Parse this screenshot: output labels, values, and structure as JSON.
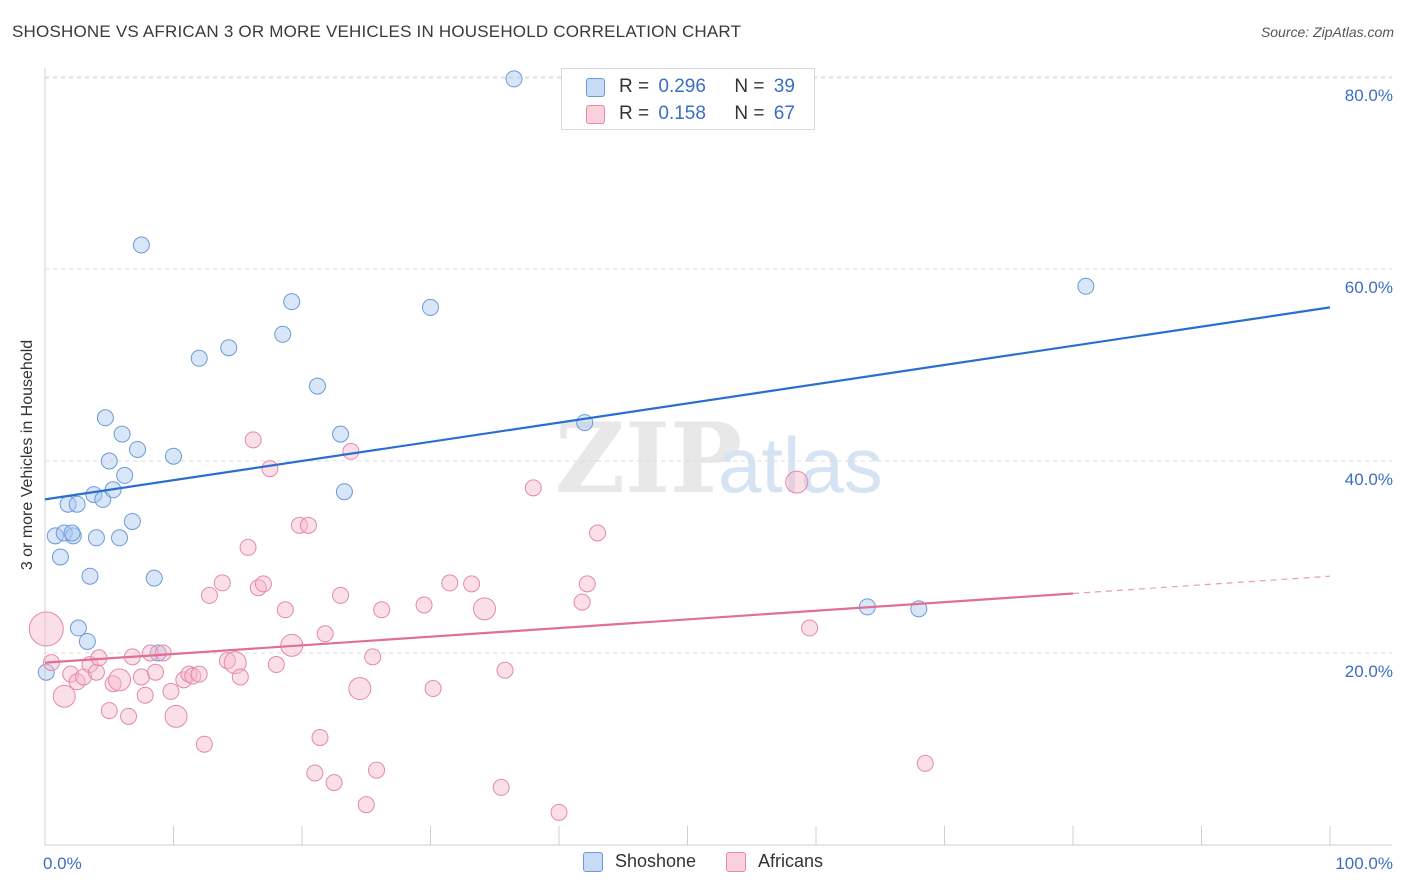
{
  "title": "SHOSHONE VS AFRICAN 3 OR MORE VEHICLES IN HOUSEHOLD CORRELATION CHART",
  "source": "Source: ZipAtlas.com",
  "watermark": {
    "zip": "ZIP",
    "atlas": "atlas"
  },
  "legend_top": {
    "rows": [
      {
        "r_label": "R =",
        "r_value": "0.296",
        "n_label": "N =",
        "n_value": "39",
        "color": "#a9c8f0"
      },
      {
        "r_label": "R =",
        "r_value": "0.158",
        "n_label": "N =",
        "n_value": "67",
        "color": "#f6b8cb"
      }
    ]
  },
  "chart_data": {
    "type": "scatter",
    "title": "SHOSHONE VS AFRICAN 3 OR MORE VEHICLES IN HOUSEHOLD CORRELATION CHART",
    "xlabel": "",
    "ylabel": "3 or more Vehicles in Household",
    "xlim": [
      0,
      100
    ],
    "ylim": [
      0,
      83
    ],
    "x_tick_labels": [
      {
        "value": 0,
        "label": "0.0%"
      },
      {
        "value": 100,
        "label": "100.0%"
      }
    ],
    "y_tick_labels": [
      {
        "value": 20,
        "label": "20.0%"
      },
      {
        "value": 40,
        "label": "40.0%"
      },
      {
        "value": 60,
        "label": "60.0%"
      },
      {
        "value": 80,
        "label": "80.0%"
      }
    ],
    "series": [
      {
        "name": "Shoshone",
        "color": "#a9c8f0",
        "edge_color": "#6c9ad8",
        "line_color": "#2a6fcf",
        "trend": {
          "x": [
            0,
            100
          ],
          "y": [
            36.0,
            56.0
          ]
        },
        "points": [
          [
            0.1,
            18.0
          ],
          [
            0.8,
            32.2
          ],
          [
            1.2,
            30.0
          ],
          [
            1.5,
            32.5
          ],
          [
            1.8,
            35.5
          ],
          [
            2.2,
            32.2
          ],
          [
            2.5,
            35.5
          ],
          [
            3.5,
            28.0
          ],
          [
            3.8,
            36.5
          ],
          [
            4.0,
            32.0
          ],
          [
            4.5,
            36.0
          ],
          [
            4.7,
            44.5
          ],
          [
            5.0,
            40.0
          ],
          [
            5.3,
            37.0
          ],
          [
            5.8,
            32.0
          ],
          [
            6.0,
            42.8
          ],
          [
            6.2,
            38.5
          ],
          [
            6.8,
            33.7
          ],
          [
            7.2,
            41.2
          ],
          [
            7.5,
            62.5
          ],
          [
            8.5,
            27.8
          ],
          [
            8.8,
            20.0
          ],
          [
            10.0,
            40.5
          ],
          [
            12.0,
            50.7
          ],
          [
            14.3,
            51.8
          ],
          [
            18.5,
            53.2
          ],
          [
            19.2,
            56.6
          ],
          [
            21.2,
            47.8
          ],
          [
            23.0,
            42.8
          ],
          [
            23.3,
            36.8
          ],
          [
            30.0,
            56.0
          ],
          [
            36.5,
            79.8
          ],
          [
            42.0,
            44.0
          ],
          [
            64.0,
            24.8
          ],
          [
            68.0,
            24.6
          ],
          [
            81.0,
            58.2
          ],
          [
            2.6,
            22.6
          ],
          [
            3.3,
            21.2
          ],
          [
            2.1,
            32.5
          ]
        ]
      },
      {
        "name": "Africans",
        "color": "#f6b8cb",
        "edge_color": "#e48aa6",
        "line_color": "#e06f96",
        "trend": {
          "x": [
            0,
            80
          ],
          "y": [
            19.0,
            26.2
          ]
        },
        "trend_dashed": {
          "x": [
            80,
            100
          ],
          "y": [
            26.2,
            28.0
          ]
        },
        "points": [
          [
            0.1,
            22.5
          ],
          [
            0.5,
            19.0
          ],
          [
            1.5,
            15.5
          ],
          [
            2.0,
            17.8
          ],
          [
            2.5,
            17.0
          ],
          [
            3.0,
            17.5
          ],
          [
            3.5,
            18.8
          ],
          [
            4.0,
            18.0
          ],
          [
            4.2,
            19.5
          ],
          [
            5.0,
            14.0
          ],
          [
            5.3,
            16.8
          ],
          [
            5.8,
            17.2
          ],
          [
            6.5,
            13.4
          ],
          [
            6.8,
            19.6
          ],
          [
            7.5,
            17.5
          ],
          [
            7.8,
            15.6
          ],
          [
            8.2,
            20.0
          ],
          [
            8.6,
            18.0
          ],
          [
            9.2,
            20.0
          ],
          [
            9.8,
            16.0
          ],
          [
            10.2,
            13.4
          ],
          [
            10.8,
            17.2
          ],
          [
            11.2,
            17.8
          ],
          [
            11.5,
            17.6
          ],
          [
            12.0,
            17.8
          ],
          [
            12.4,
            10.5
          ],
          [
            12.8,
            26.0
          ],
          [
            13.8,
            27.3
          ],
          [
            14.2,
            19.2
          ],
          [
            14.8,
            19.0
          ],
          [
            15.2,
            17.5
          ],
          [
            15.8,
            31.0
          ],
          [
            16.2,
            42.2
          ],
          [
            16.6,
            26.8
          ],
          [
            17.0,
            27.2
          ],
          [
            17.5,
            39.2
          ],
          [
            18.0,
            18.8
          ],
          [
            18.7,
            24.5
          ],
          [
            19.2,
            20.8
          ],
          [
            19.8,
            33.3
          ],
          [
            20.5,
            33.3
          ],
          [
            21.0,
            7.5
          ],
          [
            21.4,
            11.2
          ],
          [
            21.8,
            22.0
          ],
          [
            22.5,
            6.5
          ],
          [
            23.0,
            26.0
          ],
          [
            23.8,
            41.0
          ],
          [
            24.5,
            16.3
          ],
          [
            25.0,
            4.2
          ],
          [
            25.5,
            19.6
          ],
          [
            25.8,
            7.8
          ],
          [
            26.2,
            24.5
          ],
          [
            29.5,
            25.0
          ],
          [
            30.2,
            16.3
          ],
          [
            31.5,
            27.3
          ],
          [
            33.2,
            27.2
          ],
          [
            34.2,
            24.6
          ],
          [
            35.5,
            6.0
          ],
          [
            35.8,
            18.2
          ],
          [
            38.0,
            37.2
          ],
          [
            40.0,
            3.4
          ],
          [
            41.8,
            25.3
          ],
          [
            42.2,
            27.2
          ],
          [
            43.0,
            32.5
          ],
          [
            59.5,
            22.6
          ],
          [
            58.5,
            37.8
          ],
          [
            68.5,
            8.5
          ]
        ]
      }
    ]
  },
  "legend_bottom": {
    "items": [
      {
        "label": "Shoshone",
        "color": "#a9c8f0"
      },
      {
        "label": "Africans",
        "color": "#f6b8cb"
      }
    ]
  }
}
